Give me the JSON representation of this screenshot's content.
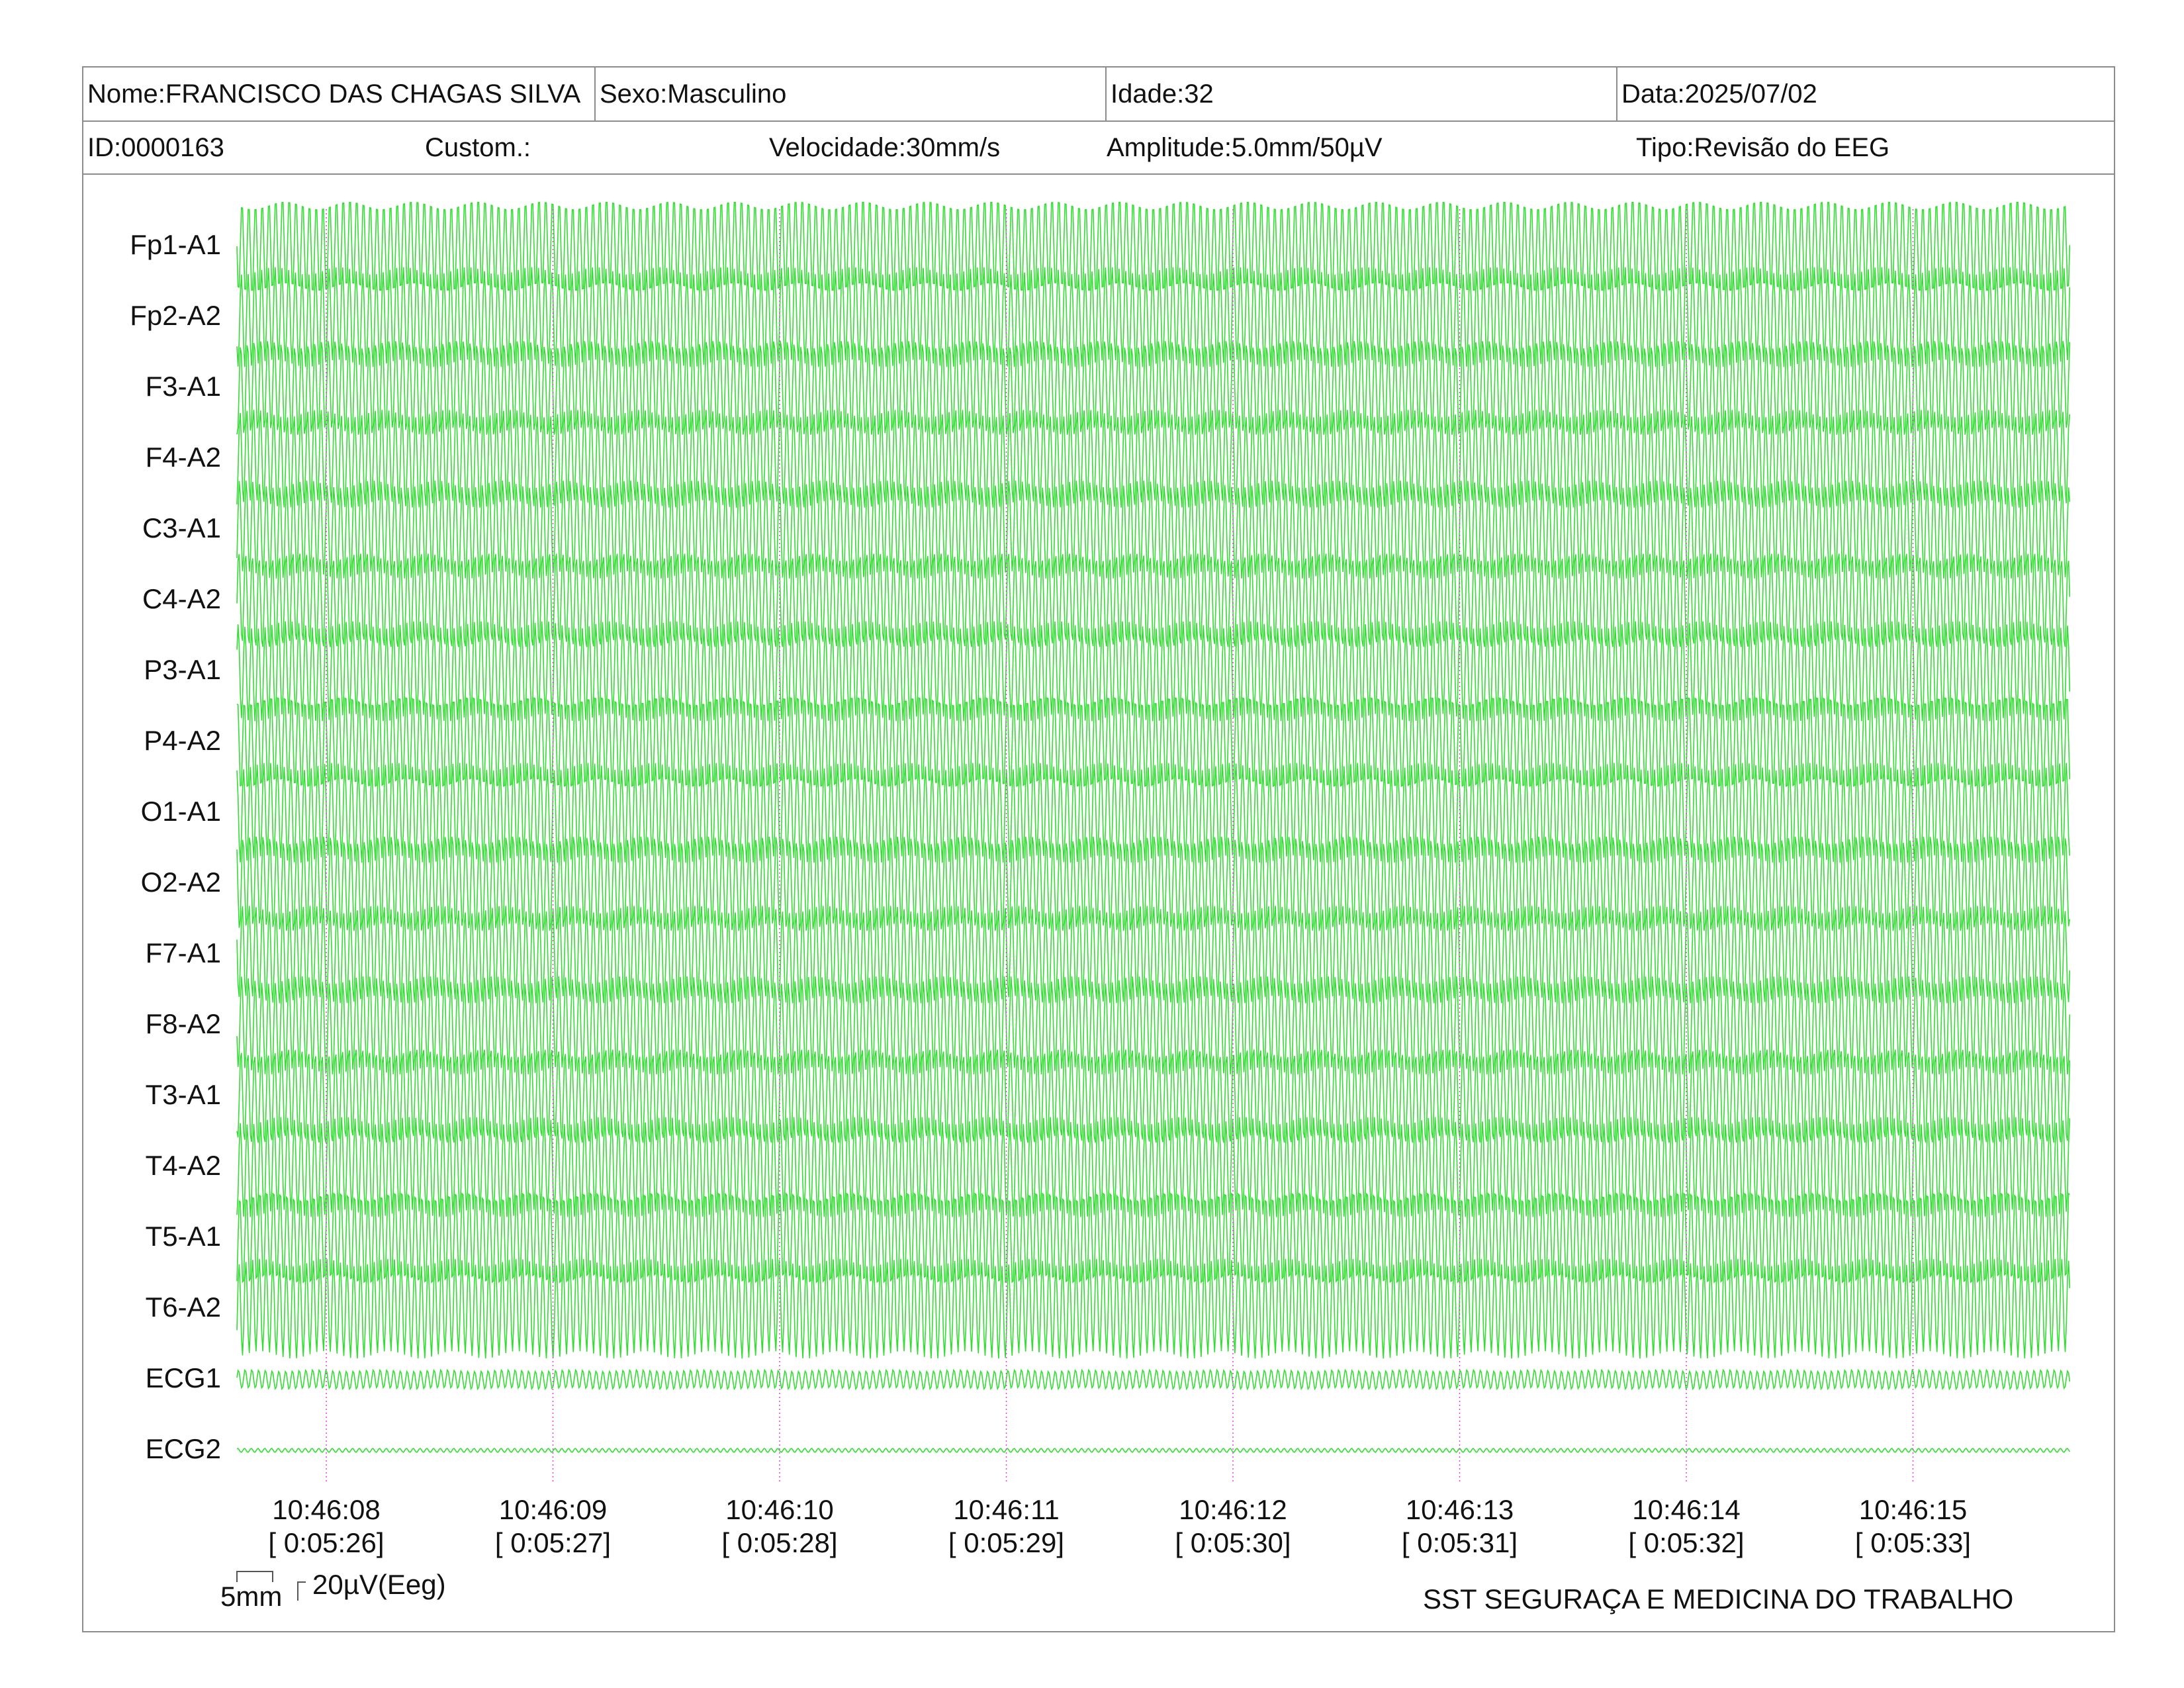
{
  "header": {
    "nome": "Nome:FRANCISCO DAS CHAGAS SILVA",
    "sexo": "Sexo:Masculino",
    "idade": "Idade:32",
    "data": "Data:2025/07/02",
    "id": "ID:0000163",
    "custom": "Custom.:",
    "velocidade": "Velocidade:30mm/s",
    "amplitude": "Amplitude:5.0mm/50µV",
    "tipo": "Tipo:Revisão do EEG"
  },
  "chart_data": {
    "type": "line",
    "trace_color": "#33dd33",
    "marker_color": "#e040e0",
    "channels": [
      "Fp1-A1",
      "Fp2-A2",
      "F3-A1",
      "F4-A2",
      "C3-A1",
      "C4-A2",
      "P3-A1",
      "P4-A2",
      "O1-A1",
      "O2-A2",
      "F7-A1",
      "F8-A2",
      "T3-A1",
      "T4-A2",
      "T5-A1",
      "T6-A2",
      "ECG1",
      "ECG2"
    ],
    "time_ticks": [
      {
        "clock": "10:46:08",
        "elapsed": "[ 0:05:26]"
      },
      {
        "clock": "10:46:09",
        "elapsed": "[ 0:05:27]"
      },
      {
        "clock": "10:46:10",
        "elapsed": "[ 0:05:28]"
      },
      {
        "clock": "10:46:11",
        "elapsed": "[ 0:05:29]"
      },
      {
        "clock": "10:46:12",
        "elapsed": "[ 0:05:30]"
      },
      {
        "clock": "10:46:13",
        "elapsed": "[ 0:05:31]"
      },
      {
        "clock": "10:46:14",
        "elapsed": "[ 0:05:32]"
      },
      {
        "clock": "10:46:15",
        "elapsed": "[ 0:05:33]"
      }
    ]
  },
  "scale": {
    "time_bar": "5mm",
    "amp_bar": "20µV(Eeg)"
  },
  "footer": {
    "company": "SST SEGURAÇA E MEDICINA DO TRABALHO"
  }
}
